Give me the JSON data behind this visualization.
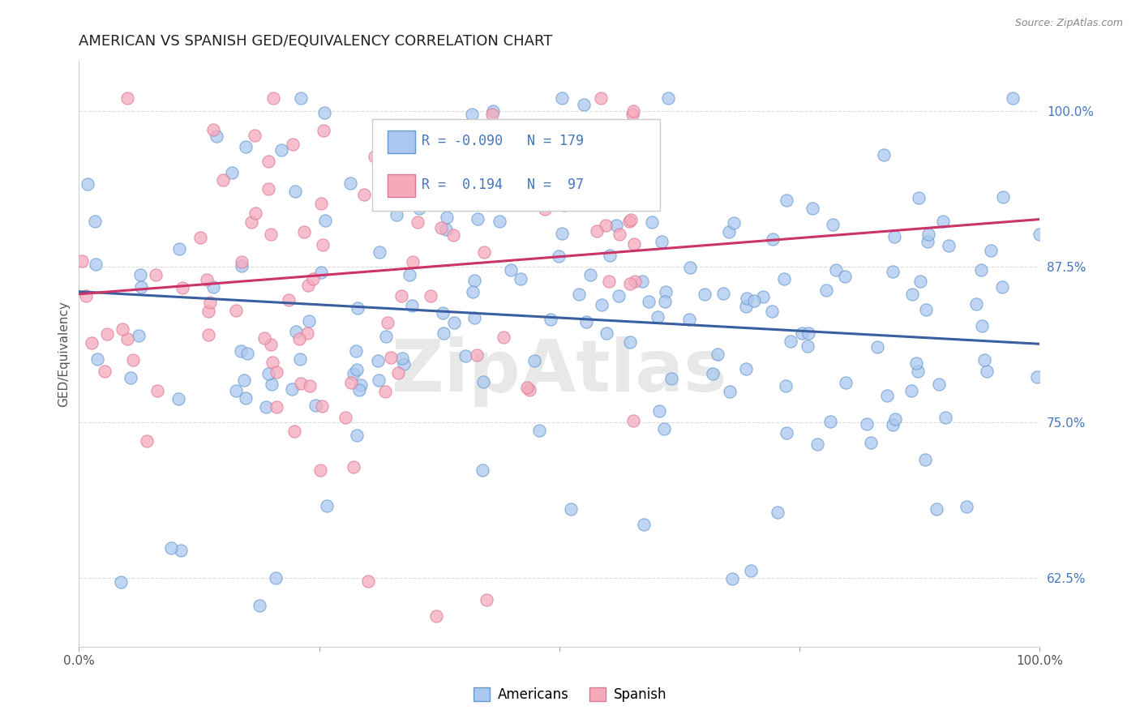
{
  "title": "AMERICAN VS SPANISH GED/EQUIVALENCY CORRELATION CHART",
  "source": "Source: ZipAtlas.com",
  "ylabel": "GED/Equivalency",
  "xlim": [
    0.0,
    1.0
  ],
  "ylim": [
    0.57,
    1.04
  ],
  "yticks": [
    0.625,
    0.75,
    0.875,
    1.0
  ],
  "ytick_labels": [
    "62.5%",
    "75.0%",
    "87.5%",
    "100.0%"
  ],
  "americans_color": "#aac8ef",
  "spanish_color": "#f5aabb",
  "americans_edge_color": "#6699cc",
  "spanish_edge_color": "#dd7799",
  "americans_line_color": "#3a5fa0",
  "spanish_line_color": "#cc3366",
  "yticklabel_color": "#4477bb",
  "legend_label_americans": "Americans",
  "legend_label_spanish": "Spanish",
  "R_americans": -0.09,
  "N_americans": 179,
  "R_spanish": 0.194,
  "N_spanish": 97,
  "background_color": "#ffffff",
  "grid_color": "#dddddd",
  "title_fontsize": 13,
  "axis_fontsize": 11,
  "tick_fontsize": 11,
  "legend_fontsize": 12,
  "watermark": "ZipAtlas",
  "am_line_y0": 0.855,
  "am_line_y1": 0.813,
  "sp_line_y0": 0.853,
  "sp_line_y1": 0.913
}
